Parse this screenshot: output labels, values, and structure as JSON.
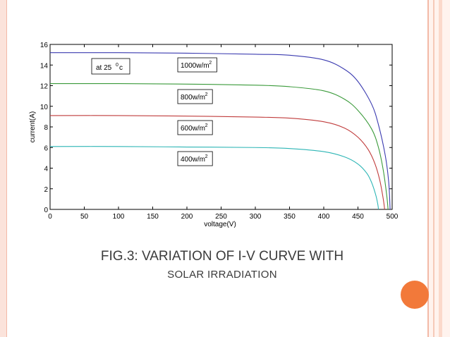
{
  "slide": {
    "caption_line1": "FIG.3: VARIATION OF I-V CURVE WITH",
    "caption_line2": "SOLAR IRRADIATION",
    "accent_color": "#f2793a"
  },
  "chart_data": {
    "type": "line",
    "title": "",
    "xlabel": "voltage(V)",
    "ylabel": "current(A)",
    "xlim": [
      0,
      500
    ],
    "ylim": [
      0,
      16
    ],
    "x_ticks": [
      0,
      50,
      100,
      150,
      200,
      250,
      300,
      350,
      400,
      450,
      500
    ],
    "y_ticks": [
      0,
      2,
      4,
      6,
      8,
      10,
      12,
      14,
      16
    ],
    "grid": false,
    "legend": "none",
    "annotations": [
      "at 25⁰c"
    ],
    "series": [
      {
        "name": "1000w/m²",
        "color": "#3b3bb0",
        "points": [
          [
            0,
            15.2
          ],
          [
            100,
            15.2
          ],
          [
            200,
            15.15
          ],
          [
            300,
            15.05
          ],
          [
            350,
            14.95
          ],
          [
            400,
            14.5
          ],
          [
            430,
            13.6
          ],
          [
            450,
            12.4
          ],
          [
            470,
            10.2
          ],
          [
            480,
            8.2
          ],
          [
            490,
            5.2
          ],
          [
            495,
            2.6
          ],
          [
            497,
            0
          ]
        ]
      },
      {
        "name": "800w/m²",
        "color": "#3a9a3a",
        "points": [
          [
            0,
            12.2
          ],
          [
            100,
            12.2
          ],
          [
            200,
            12.15
          ],
          [
            300,
            12.05
          ],
          [
            350,
            11.9
          ],
          [
            400,
            11.5
          ],
          [
            430,
            10.7
          ],
          [
            450,
            9.6
          ],
          [
            470,
            7.8
          ],
          [
            480,
            6.0
          ],
          [
            487,
            3.8
          ],
          [
            492,
            1.4
          ],
          [
            494,
            0
          ]
        ]
      },
      {
        "name": "600w/m²",
        "color": "#c03c3c",
        "points": [
          [
            0,
            9.1
          ],
          [
            100,
            9.1
          ],
          [
            200,
            9.05
          ],
          [
            300,
            8.95
          ],
          [
            350,
            8.85
          ],
          [
            400,
            8.5
          ],
          [
            430,
            7.9
          ],
          [
            450,
            7.0
          ],
          [
            465,
            5.8
          ],
          [
            475,
            4.4
          ],
          [
            482,
            2.8
          ],
          [
            487,
            1.0
          ],
          [
            489,
            0
          ]
        ]
      },
      {
        "name": "400w/m²",
        "color": "#2cb5b5",
        "points": [
          [
            0,
            6.1
          ],
          [
            100,
            6.1
          ],
          [
            200,
            6.05
          ],
          [
            300,
            6.0
          ],
          [
            350,
            5.9
          ],
          [
            400,
            5.6
          ],
          [
            430,
            5.1
          ],
          [
            450,
            4.4
          ],
          [
            463,
            3.5
          ],
          [
            470,
            2.6
          ],
          [
            476,
            1.4
          ],
          [
            479,
            0.5
          ],
          [
            480,
            0
          ]
        ]
      }
    ],
    "labels": [
      "at 25",
      "0",
      "c"
    ]
  }
}
